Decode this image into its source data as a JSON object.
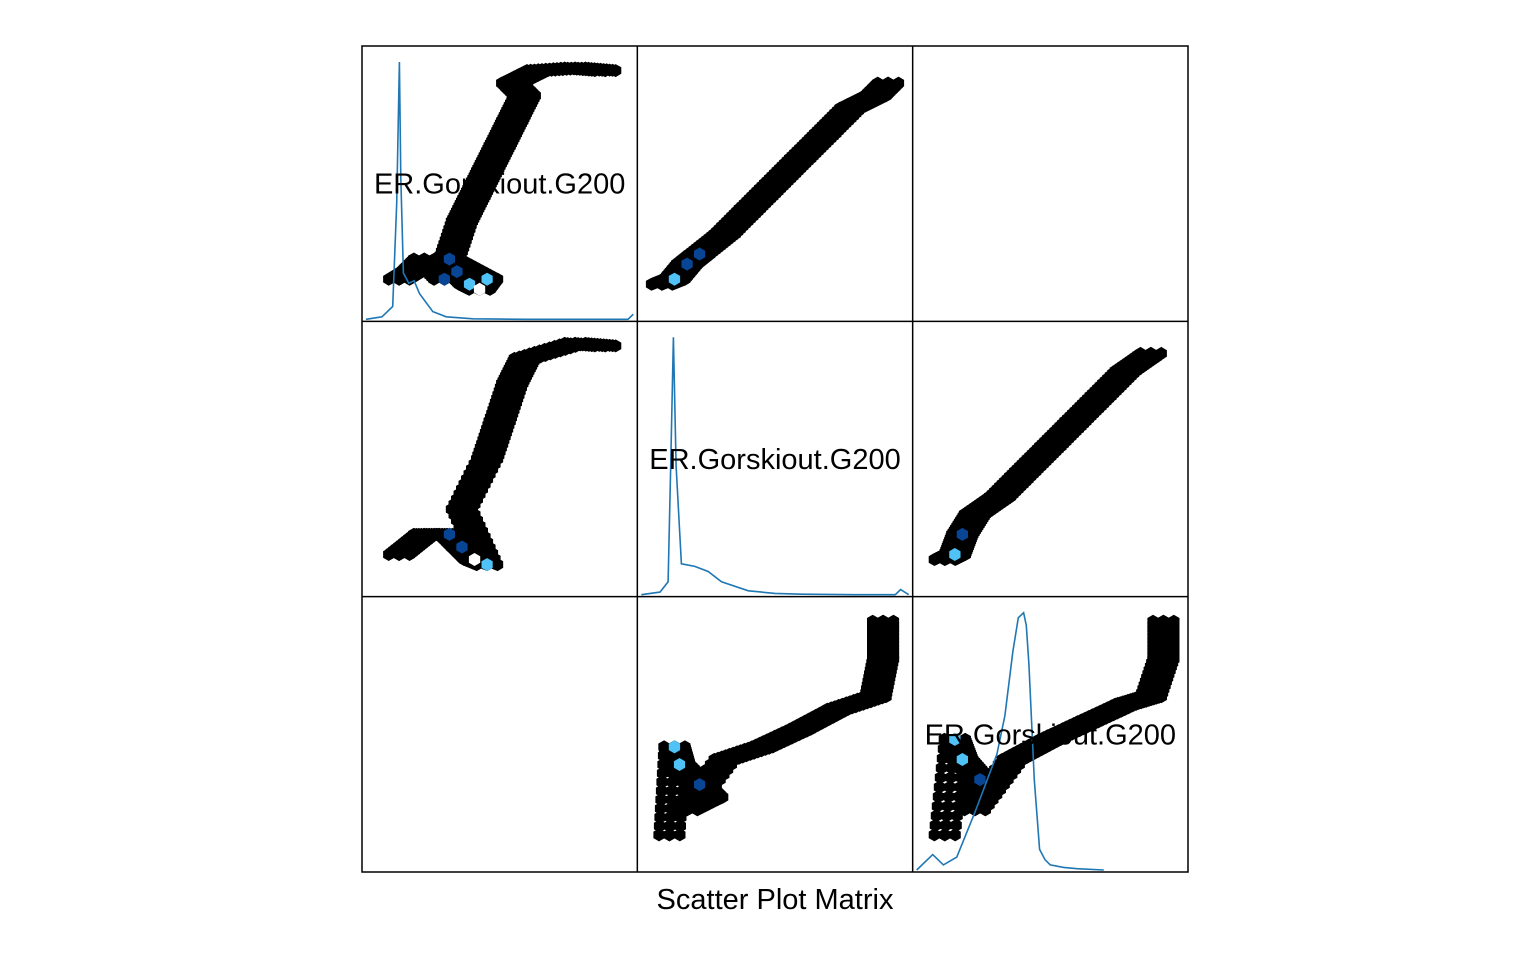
{
  "title": "Scatter Plot Matrix",
  "chart_data": {
    "type": "scatter",
    "subtype": "hexbin scatter plot matrix",
    "title": "Scatter Plot Matrix",
    "variables": [
      "ER.Gorskiout.G200",
      "ER.Gorskiout.G200",
      "ER.Gorskiout.G200"
    ],
    "grid": "3x3",
    "axes": "none",
    "diagonal": "density curves",
    "off_diagonal": "hexagonal binned counts",
    "colors": {
      "low_count": "#000000",
      "mid_count": "#084594",
      "high_count": "#4fc3f7",
      "max_count": "#ffffff",
      "density_line": "#1f77b4",
      "frame": "#000000",
      "background": "#ffffff"
    },
    "density_curves": [
      {
        "name": "ER.Gorskiout.G200",
        "x": [
          0,
          0.06,
          0.1,
          0.115,
          0.125,
          0.13,
          0.14,
          0.16,
          0.18,
          0.2,
          0.25,
          0.3,
          0.4,
          0.5,
          0.6,
          0.98,
          1.0
        ],
        "y": [
          0,
          0.01,
          0.05,
          0.45,
          1.0,
          0.55,
          0.18,
          0.14,
          0.15,
          0.1,
          0.03,
          0.01,
          0.002,
          0.001,
          0,
          0,
          0.02
        ]
      },
      {
        "name": "ER.Gorskiout.G200",
        "x": [
          0,
          0.07,
          0.1,
          0.11,
          0.12,
          0.13,
          0.15,
          0.2,
          0.25,
          0.3,
          0.4,
          0.5,
          0.6,
          0.8,
          0.9,
          0.95,
          0.97,
          1.0
        ],
        "y": [
          0,
          0.01,
          0.05,
          0.5,
          1.0,
          0.5,
          0.12,
          0.11,
          0.09,
          0.05,
          0.015,
          0.005,
          0.002,
          0,
          0,
          0,
          0.02,
          0
        ]
      },
      {
        "name": "ER.Gorskiout.G200",
        "x": [
          0,
          0.06,
          0.1,
          0.15,
          0.22,
          0.3,
          0.33,
          0.36,
          0.38,
          0.4,
          0.41,
          0.42,
          0.44,
          0.46,
          0.48,
          0.5,
          0.55,
          0.6,
          0.7
        ],
        "y": [
          0,
          0.06,
          0.02,
          0.05,
          0.23,
          0.45,
          0.6,
          0.85,
          0.98,
          1.0,
          0.95,
          0.8,
          0.35,
          0.08,
          0.04,
          0.02,
          0.01,
          0.005,
          0
        ]
      }
    ],
    "hexbin_panels": [
      {
        "row": 1,
        "col": 1,
        "points": [
          [
            0.1,
            0.12,
            1
          ],
          [
            0.15,
            0.15,
            1
          ],
          [
            0.2,
            0.2,
            1
          ],
          [
            0.28,
            0.12,
            3
          ],
          [
            0.33,
            0.15,
            5
          ],
          [
            0.38,
            0.1,
            8
          ],
          [
            0.42,
            0.08,
            9
          ],
          [
            0.45,
            0.12,
            6
          ],
          [
            0.3,
            0.2,
            3
          ],
          [
            0.35,
            0.35,
            1
          ],
          [
            0.4,
            0.45,
            1
          ],
          [
            0.45,
            0.55,
            1
          ],
          [
            0.5,
            0.65,
            1
          ],
          [
            0.55,
            0.75,
            1
          ],
          [
            0.6,
            0.85,
            1
          ],
          [
            0.55,
            0.9,
            1
          ],
          [
            0.65,
            0.95,
            1
          ],
          [
            0.8,
            0.96,
            1
          ],
          [
            0.92,
            0.95,
            1
          ]
        ]
      },
      {
        "row": 1,
        "col": 2,
        "points": [
          [
            0.05,
            0.1,
            1
          ],
          [
            0.1,
            0.12,
            8
          ],
          [
            0.15,
            0.18,
            5
          ],
          [
            0.2,
            0.22,
            3
          ],
          [
            0.3,
            0.3,
            1
          ],
          [
            0.4,
            0.4,
            1
          ],
          [
            0.5,
            0.5,
            1
          ],
          [
            0.6,
            0.6,
            1
          ],
          [
            0.7,
            0.7,
            1
          ],
          [
            0.8,
            0.8,
            1
          ],
          [
            0.9,
            0.85,
            1
          ],
          [
            0.95,
            0.9,
            1
          ]
        ]
      },
      {
        "row": 2,
        "col": 1,
        "points": [
          [
            0.1,
            0.12,
            1
          ],
          [
            0.2,
            0.2,
            1
          ],
          [
            0.3,
            0.2,
            3
          ],
          [
            0.35,
            0.15,
            5
          ],
          [
            0.4,
            0.1,
            9
          ],
          [
            0.45,
            0.08,
            7
          ],
          [
            0.35,
            0.3,
            1
          ],
          [
            0.45,
            0.5,
            1
          ],
          [
            0.5,
            0.65,
            1
          ],
          [
            0.55,
            0.8,
            1
          ],
          [
            0.6,
            0.9,
            1
          ],
          [
            0.8,
            0.96,
            1
          ],
          [
            0.92,
            0.95,
            1
          ]
        ]
      },
      {
        "row": 2,
        "col": 3,
        "points": [
          [
            0.08,
            0.1,
            1
          ],
          [
            0.12,
            0.12,
            8
          ],
          [
            0.15,
            0.2,
            4
          ],
          [
            0.2,
            0.28,
            2
          ],
          [
            0.3,
            0.35,
            1
          ],
          [
            0.4,
            0.45,
            1
          ],
          [
            0.5,
            0.55,
            1
          ],
          [
            0.6,
            0.65,
            1
          ],
          [
            0.7,
            0.75,
            1
          ],
          [
            0.8,
            0.85,
            1
          ],
          [
            0.9,
            0.92,
            1
          ]
        ]
      },
      {
        "row": 3,
        "col": 2,
        "points": [
          [
            0.08,
            0.1,
            1
          ],
          [
            0.1,
            0.45,
            8
          ],
          [
            0.12,
            0.38,
            6
          ],
          [
            0.2,
            0.3,
            3
          ],
          [
            0.25,
            0.25,
            2
          ],
          [
            0.15,
            0.2,
            1
          ],
          [
            0.3,
            0.4,
            1
          ],
          [
            0.45,
            0.45,
            1
          ],
          [
            0.6,
            0.52,
            1
          ],
          [
            0.75,
            0.6,
            1
          ],
          [
            0.9,
            0.65,
            1
          ],
          [
            0.93,
            0.8,
            1
          ],
          [
            0.93,
            0.95,
            1
          ]
        ]
      },
      {
        "row": 3,
        "col": 3,
        "points": [
          [
            0.08,
            0.1,
            1
          ],
          [
            0.12,
            0.48,
            8
          ],
          [
            0.15,
            0.4,
            6
          ],
          [
            0.22,
            0.32,
            3
          ],
          [
            0.2,
            0.2,
            1
          ],
          [
            0.35,
            0.4,
            1
          ],
          [
            0.5,
            0.48,
            1
          ],
          [
            0.65,
            0.55,
            1
          ],
          [
            0.8,
            0.62,
            1
          ],
          [
            0.9,
            0.65,
            1
          ],
          [
            0.95,
            0.8,
            1
          ],
          [
            0.95,
            0.95,
            1
          ]
        ]
      }
    ]
  }
}
